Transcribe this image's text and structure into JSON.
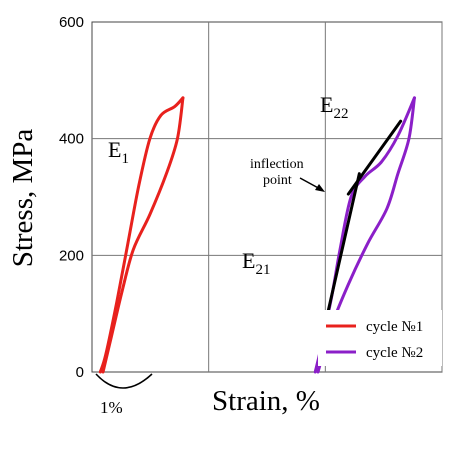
{
  "chart_data": {
    "type": "line",
    "xlabel": "Strain, %",
    "ylabel": "Stress, MPa",
    "ylim": [
      0,
      600
    ],
    "yticks": [
      "0",
      "200",
      "400",
      "600"
    ],
    "grid": true,
    "scale_bar_label": "1%",
    "legend_position": "bottom-right",
    "annotations": {
      "e1": {
        "main": "E",
        "sub": "1"
      },
      "e22": {
        "main": "E",
        "sub": "22"
      },
      "e21": {
        "main": "E",
        "sub": "21"
      },
      "inflection_line1": "inflection",
      "inflection_line2": "point"
    },
    "series": [
      {
        "name": "cycle №1",
        "color": "#e8211d",
        "loading": [
          [
            0.0,
            0
          ],
          [
            0.1,
            30
          ],
          [
            0.3,
            120
          ],
          [
            0.5,
            220
          ],
          [
            0.7,
            320
          ],
          [
            0.9,
            400
          ],
          [
            1.1,
            440
          ],
          [
            1.35,
            455
          ],
          [
            1.5,
            470
          ]
        ],
        "unloading": [
          [
            1.5,
            470
          ],
          [
            1.4,
            400
          ],
          [
            1.2,
            340
          ],
          [
            0.9,
            270
          ],
          [
            0.6,
            210
          ],
          [
            0.4,
            140
          ],
          [
            0.2,
            60
          ],
          [
            0.05,
            0
          ]
        ]
      },
      {
        "name": "cycle №2",
        "color": "#8b1fc8",
        "loading": [
          [
            3.9,
            0
          ],
          [
            4.0,
            40
          ],
          [
            4.2,
            130
          ],
          [
            4.35,
            210
          ],
          [
            4.55,
            300
          ],
          [
            4.8,
            335
          ],
          [
            5.1,
            360
          ],
          [
            5.4,
            405
          ],
          [
            5.7,
            470
          ]
        ],
        "unloading": [
          [
            5.7,
            470
          ],
          [
            5.6,
            400
          ],
          [
            5.4,
            340
          ],
          [
            5.2,
            280
          ],
          [
            4.85,
            220
          ],
          [
            4.5,
            150
          ],
          [
            4.2,
            80
          ],
          [
            3.95,
            0
          ]
        ]
      }
    ],
    "tangents": [
      {
        "x": [
          3.98,
          4.7
        ],
        "y": [
          40,
          340
        ]
      },
      {
        "x": [
          4.5,
          5.45
        ],
        "y": [
          305,
          430
        ]
      }
    ]
  }
}
